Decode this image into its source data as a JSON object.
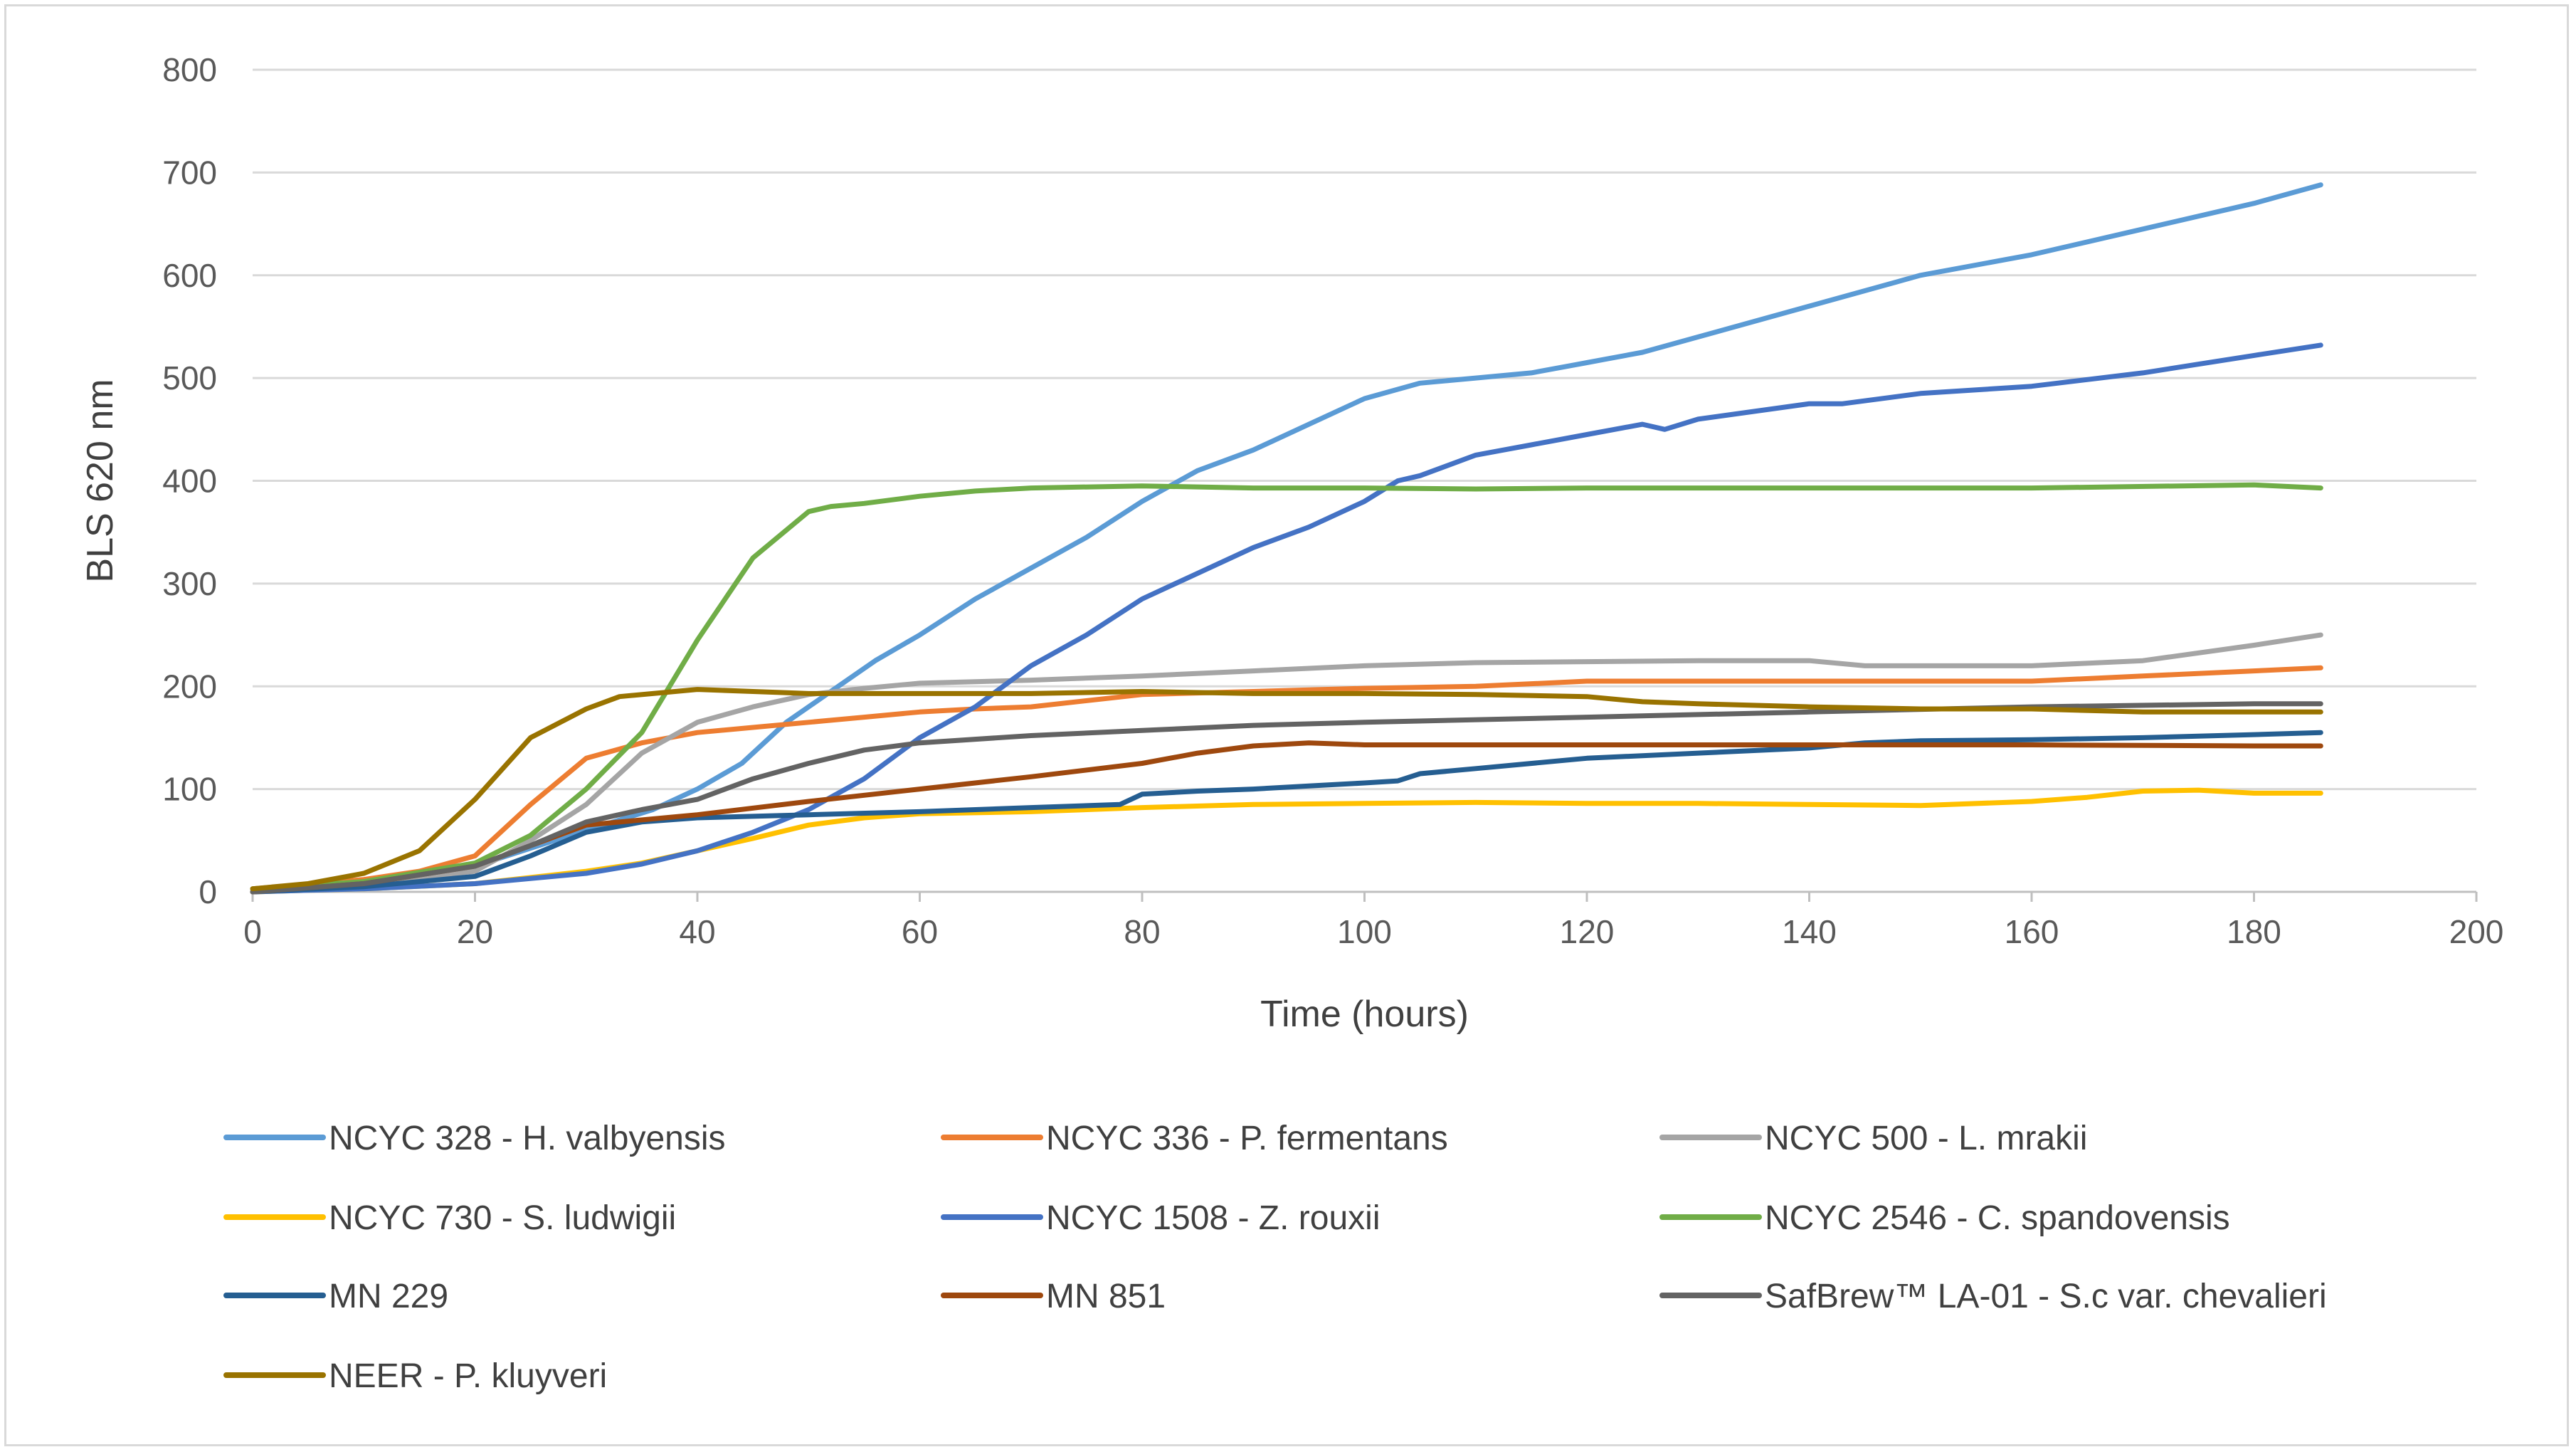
{
  "chart_data": {
    "type": "line",
    "title": "",
    "xlabel": "Time (hours)",
    "ylabel": "BLS 620 nm",
    "xlim": [
      0,
      200
    ],
    "ylim": [
      0,
      800
    ],
    "xticks": [
      0,
      20,
      40,
      60,
      80,
      100,
      120,
      140,
      160,
      180,
      200
    ],
    "yticks": [
      0,
      100,
      200,
      300,
      400,
      500,
      600,
      700,
      800
    ],
    "grid": true,
    "legend_position": "bottom",
    "series": [
      {
        "name": "NCYC 328 - H. valbyensis",
        "color": "#5B9BD5",
        "x": [
          0,
          10,
          20,
          30,
          36,
          40,
          44,
          48,
          52,
          56,
          60,
          65,
          70,
          75,
          80,
          85,
          90,
          95,
          100,
          105,
          110,
          115,
          120,
          125,
          130,
          140,
          150,
          160,
          170,
          180,
          186
        ],
        "y": [
          0,
          8,
          25,
          60,
          80,
          100,
          125,
          165,
          195,
          225,
          250,
          285,
          315,
          345,
          380,
          410,
          430,
          455,
          480,
          495,
          500,
          505,
          515,
          525,
          540,
          570,
          600,
          620,
          645,
          670,
          688
        ]
      },
      {
        "name": "NCYC 336 - P. fermentans",
        "color": "#ED7D31",
        "x": [
          0,
          10,
          15,
          20,
          25,
          30,
          35,
          40,
          45,
          50,
          55,
          60,
          65,
          70,
          80,
          90,
          100,
          110,
          120,
          125,
          130,
          140,
          150,
          160,
          170,
          180,
          186
        ],
        "y": [
          3,
          12,
          20,
          35,
          85,
          130,
          145,
          155,
          160,
          165,
          170,
          175,
          178,
          180,
          192,
          195,
          198,
          200,
          205,
          205,
          205,
          205,
          205,
          205,
          210,
          215,
          218
        ]
      },
      {
        "name": "NCYC 500 - L. mrakii",
        "color": "#A5A5A5",
        "x": [
          0,
          10,
          20,
          25,
          30,
          35,
          40,
          45,
          50,
          55,
          60,
          70,
          80,
          90,
          100,
          110,
          120,
          130,
          140,
          145,
          150,
          160,
          170,
          180,
          186
        ],
        "y": [
          0,
          8,
          20,
          50,
          85,
          135,
          165,
          180,
          192,
          198,
          203,
          206,
          210,
          215,
          220,
          223,
          224,
          225,
          225,
          220,
          220,
          220,
          225,
          240,
          250
        ]
      },
      {
        "name": "NCYC 730 - S. ludwigii",
        "color": "#FFC000",
        "x": [
          0,
          10,
          20,
          30,
          35,
          40,
          45,
          50,
          55,
          60,
          70,
          80,
          90,
          100,
          110,
          120,
          130,
          140,
          150,
          160,
          165,
          170,
          175,
          180,
          186
        ],
        "y": [
          0,
          3,
          8,
          20,
          28,
          40,
          52,
          65,
          72,
          76,
          78,
          82,
          85,
          86,
          87,
          86,
          86,
          85,
          84,
          88,
          92,
          98,
          99,
          96,
          96
        ]
      },
      {
        "name": "NCYC 1508 - Z. rouxii",
        "color": "#4472C4",
        "x": [
          0,
          10,
          20,
          30,
          35,
          40,
          45,
          50,
          55,
          60,
          65,
          70,
          75,
          80,
          85,
          90,
          95,
          100,
          103,
          105,
          110,
          115,
          120,
          125,
          127,
          130,
          140,
          143,
          150,
          160,
          170,
          180,
          186
        ],
        "y": [
          0,
          3,
          8,
          18,
          27,
          40,
          58,
          80,
          110,
          150,
          180,
          220,
          250,
          285,
          310,
          335,
          355,
          380,
          400,
          405,
          425,
          435,
          445,
          455,
          450,
          460,
          475,
          475,
          485,
          492,
          505,
          522,
          532
        ]
      },
      {
        "name": "NCYC 2546 - C. spandovensis",
        "color": "#70AD47",
        "x": [
          0,
          10,
          20,
          25,
          30,
          35,
          40,
          45,
          50,
          52,
          55,
          60,
          65,
          70,
          80,
          90,
          100,
          110,
          120,
          140,
          160,
          180,
          186
        ],
        "y": [
          3,
          10,
          28,
          55,
          100,
          155,
          245,
          325,
          370,
          375,
          378,
          385,
          390,
          393,
          395,
          393,
          393,
          392,
          393,
          393,
          393,
          396,
          393
        ]
      },
      {
        "name": "MN 229",
        "color": "#255E91",
        "x": [
          0,
          10,
          20,
          25,
          30,
          35,
          40,
          50,
          60,
          70,
          78,
          80,
          85,
          90,
          95,
          100,
          103,
          105,
          110,
          120,
          130,
          140,
          145,
          150,
          160,
          170,
          180,
          186
        ],
        "y": [
          0,
          5,
          15,
          35,
          58,
          68,
          72,
          75,
          78,
          82,
          85,
          95,
          98,
          100,
          103,
          106,
          108,
          115,
          120,
          130,
          135,
          140,
          145,
          147,
          148,
          150,
          153,
          155
        ]
      },
      {
        "name": "MN 851",
        "color": "#9E480E",
        "x": [
          0,
          10,
          20,
          30,
          40,
          50,
          60,
          70,
          80,
          85,
          90,
          95,
          100,
          120,
          140,
          160,
          180,
          186
        ],
        "y": [
          0,
          8,
          25,
          65,
          75,
          88,
          100,
          112,
          125,
          135,
          142,
          145,
          143,
          143,
          143,
          143,
          142,
          142
        ]
      },
      {
        "name": "SafBrew™ LA-01 - S.c var. chevalieri",
        "color": "#636363",
        "x": [
          0,
          10,
          20,
          25,
          30,
          35,
          40,
          45,
          50,
          55,
          60,
          70,
          80,
          90,
          100,
          120,
          140,
          160,
          180,
          186
        ],
        "y": [
          0,
          8,
          25,
          45,
          68,
          80,
          90,
          110,
          125,
          138,
          145,
          152,
          157,
          162,
          165,
          170,
          175,
          180,
          183,
          183
        ]
      },
      {
        "name": "NEER - P. kluyveri",
        "color": "#997300",
        "x": [
          0,
          5,
          10,
          15,
          20,
          25,
          30,
          33,
          36,
          40,
          45,
          50,
          60,
          70,
          80,
          90,
          100,
          110,
          120,
          125,
          130,
          140,
          150,
          160,
          170,
          180,
          186
        ],
        "y": [
          3,
          8,
          18,
          40,
          90,
          150,
          178,
          190,
          193,
          197,
          195,
          193,
          193,
          193,
          195,
          193,
          193,
          192,
          190,
          185,
          183,
          180,
          178,
          178,
          175,
          175,
          175
        ]
      }
    ]
  }
}
